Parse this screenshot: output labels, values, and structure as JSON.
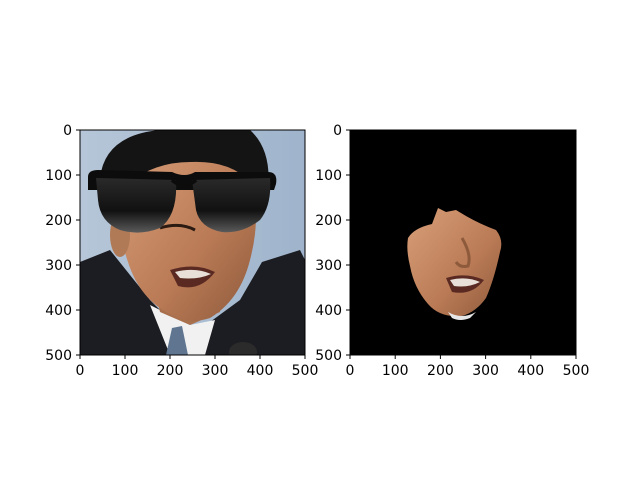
{
  "figure": {
    "background": "#ffffff"
  },
  "chart_data": [
    {
      "type": "image",
      "title": "",
      "xlabel": "",
      "ylabel": "",
      "xlim": [
        0,
        500
      ],
      "ylim": [
        500,
        0
      ],
      "xticks": [
        0,
        100,
        200,
        300,
        400,
        500
      ],
      "yticks": [
        0,
        100,
        200,
        300,
        400,
        500
      ],
      "content": "face-with-sunglasses-photo",
      "background_color": "#a9bdd4"
    },
    {
      "type": "image",
      "title": "",
      "xlabel": "",
      "ylabel": "",
      "xlim": [
        0,
        500
      ],
      "ylim": [
        500,
        0
      ],
      "xticks": [
        0,
        100,
        200,
        300,
        400,
        500
      ],
      "yticks": [
        0,
        100,
        200,
        300,
        400,
        500
      ],
      "content": "face-mask-extracted",
      "background_color": "#000000"
    }
  ]
}
